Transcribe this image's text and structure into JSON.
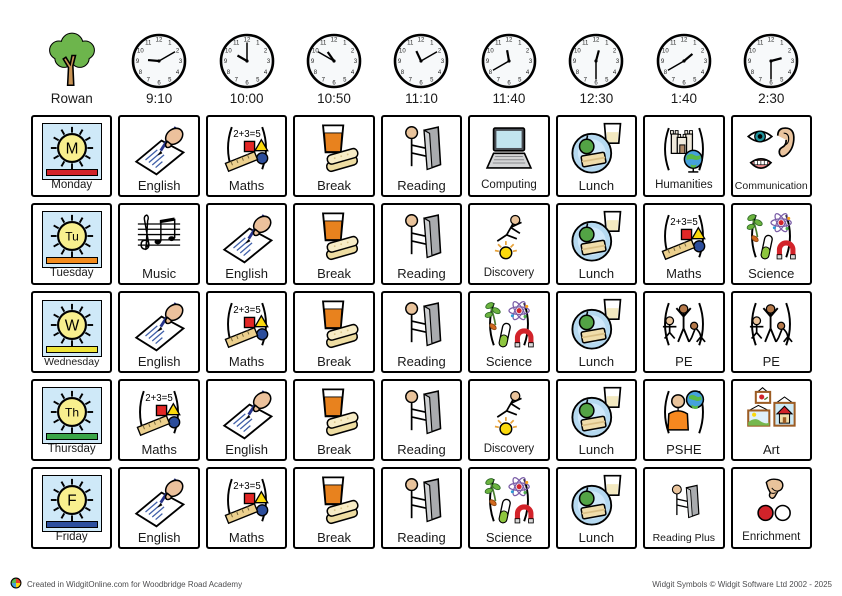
{
  "header": {
    "student": {
      "label": "Rowan",
      "icon": "tree-icon"
    },
    "times": [
      {
        "time": "9:10",
        "icon": "clock-icon"
      },
      {
        "time": "10:00",
        "icon": "clock-icon"
      },
      {
        "time": "10:50",
        "icon": "clock-icon"
      },
      {
        "time": "11:10",
        "icon": "clock-icon"
      },
      {
        "time": "11:40",
        "icon": "clock-icon"
      },
      {
        "time": "12:30",
        "icon": "clock-icon"
      },
      {
        "time": "1:40",
        "icon": "clock-icon"
      },
      {
        "time": "2:30",
        "icon": "clock-icon"
      }
    ]
  },
  "days": [
    {
      "label": "Monday",
      "abbr": "M",
      "bar_color": "#d2232a",
      "subjects": [
        {
          "label": "English",
          "icon": "english-icon"
        },
        {
          "label": "Maths",
          "icon": "maths-icon"
        },
        {
          "label": "Break",
          "icon": "break-icon"
        },
        {
          "label": "Reading",
          "icon": "reading-icon"
        },
        {
          "label": "Computing",
          "icon": "computing-icon"
        },
        {
          "label": "Lunch",
          "icon": "lunch-icon"
        },
        {
          "label": "Humanities",
          "icon": "humanities-icon"
        },
        {
          "label": "Communication",
          "icon": "communication-icon"
        }
      ]
    },
    {
      "label": "Tuesday",
      "abbr": "Tu",
      "bar_color": "#f28c1e",
      "subjects": [
        {
          "label": "Music",
          "icon": "music-icon"
        },
        {
          "label": "English",
          "icon": "english-icon"
        },
        {
          "label": "Break",
          "icon": "break-icon"
        },
        {
          "label": "Reading",
          "icon": "reading-icon"
        },
        {
          "label": "Discovery",
          "icon": "discovery-icon"
        },
        {
          "label": "Lunch",
          "icon": "lunch-icon"
        },
        {
          "label": "Maths",
          "icon": "maths-icon"
        },
        {
          "label": "Science",
          "icon": "science-icon"
        }
      ]
    },
    {
      "label": "Wednesday",
      "abbr": "W",
      "bar_color": "#efe53a",
      "subjects": [
        {
          "label": "English",
          "icon": "english-icon"
        },
        {
          "label": "Maths",
          "icon": "maths-icon"
        },
        {
          "label": "Break",
          "icon": "break-icon"
        },
        {
          "label": "Reading",
          "icon": "reading-icon"
        },
        {
          "label": "Science",
          "icon": "science-icon"
        },
        {
          "label": "Lunch",
          "icon": "lunch-icon"
        },
        {
          "label": "PE",
          "icon": "pe-icon"
        },
        {
          "label": "PE",
          "icon": "pe-icon"
        }
      ]
    },
    {
      "label": "Thursday",
      "abbr": "Th",
      "bar_color": "#3aa648",
      "subjects": [
        {
          "label": "Maths",
          "icon": "maths-icon"
        },
        {
          "label": "English",
          "icon": "english-icon"
        },
        {
          "label": "Break",
          "icon": "break-icon"
        },
        {
          "label": "Reading",
          "icon": "reading-icon"
        },
        {
          "label": "Discovery",
          "icon": "discovery-icon"
        },
        {
          "label": "Lunch",
          "icon": "lunch-icon"
        },
        {
          "label": "PSHE",
          "icon": "pshe-icon"
        },
        {
          "label": "Art",
          "icon": "art-icon"
        }
      ]
    },
    {
      "label": "Friday",
      "abbr": "F",
      "bar_color": "#2c4f9e",
      "subjects": [
        {
          "label": "English",
          "icon": "english-icon"
        },
        {
          "label": "Maths",
          "icon": "maths-icon"
        },
        {
          "label": "Break",
          "icon": "break-icon"
        },
        {
          "label": "Reading",
          "icon": "reading-icon"
        },
        {
          "label": "Science",
          "icon": "science-icon"
        },
        {
          "label": "Lunch",
          "icon": "lunch-icon"
        },
        {
          "label": "Reading Plus",
          "icon": "reading-plus-icon"
        },
        {
          "label": "Enrichment",
          "icon": "enrichment-icon"
        }
      ]
    }
  ],
  "footer": {
    "left": "Created in WidgitOnline.com for Woodbridge Road Academy",
    "right": "Widgit Symbols © Widgit Software Ltd 2002 - 2025",
    "logo_icon": "widgit-logo-icon"
  }
}
